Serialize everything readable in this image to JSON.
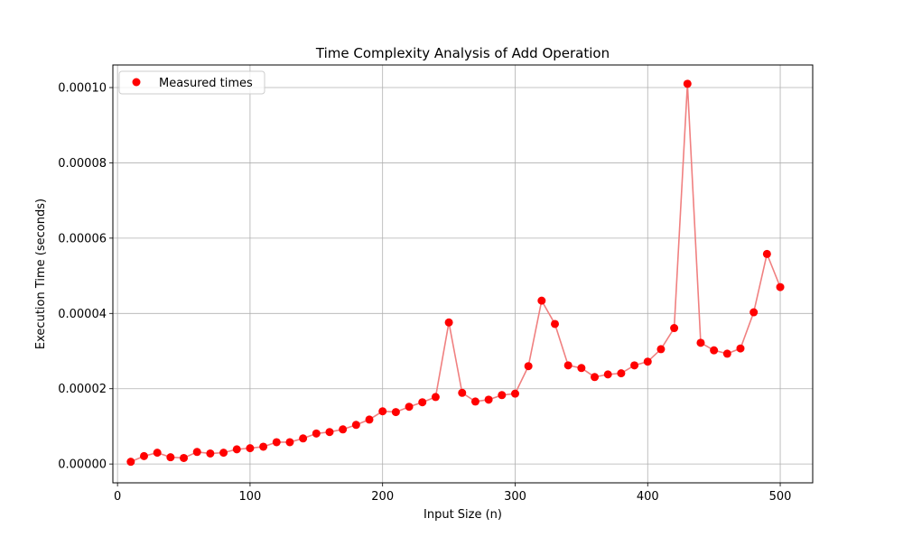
{
  "chart_data": {
    "type": "scatter",
    "title": "Time Complexity Analysis of Add Operation",
    "xlabel": "Input Size (n)",
    "ylabel": "Execution Time (seconds)",
    "xlim": [
      -3.5,
      524.5
    ],
    "ylim": [
      -5e-06,
      0.000106
    ],
    "xticks": [
      0,
      100,
      200,
      300,
      400,
      500
    ],
    "xtick_labels": [
      "0",
      "100",
      "200",
      "300",
      "400",
      "500"
    ],
    "yticks": [
      0,
      2e-05,
      4e-05,
      6e-05,
      8e-05,
      0.0001
    ],
    "ytick_labels": [
      "0.00000",
      "0.00002",
      "0.00004",
      "0.00006",
      "0.00008",
      "0.00010"
    ],
    "grid": true,
    "legend_position": "top-left",
    "series": [
      {
        "name": "Measured times",
        "marker_color": "#ff0000",
        "line_color": "#f08080",
        "x": [
          10,
          20,
          30,
          40,
          50,
          60,
          70,
          80,
          90,
          100,
          110,
          120,
          130,
          140,
          150,
          160,
          170,
          180,
          190,
          200,
          210,
          220,
          230,
          240,
          250,
          260,
          270,
          280,
          290,
          300,
          310,
          320,
          330,
          340,
          350,
          360,
          370,
          380,
          390,
          400,
          410,
          420,
          430,
          440,
          450,
          460,
          470,
          480,
          490,
          500
        ],
        "y": [
          6e-07,
          2.1e-06,
          3e-06,
          1.8e-06,
          1.6e-06,
          3.2e-06,
          2.8e-06,
          3e-06,
          3.9e-06,
          4.2e-06,
          4.6e-06,
          5.8e-06,
          5.8e-06,
          6.8e-06,
          8.1e-06,
          8.5e-06,
          9.2e-06,
          1.04e-05,
          1.18e-05,
          1.4e-05,
          1.38e-05,
          1.52e-05,
          1.64e-05,
          1.78e-05,
          3.76e-05,
          1.89e-05,
          1.66e-05,
          1.71e-05,
          1.83e-05,
          1.87e-05,
          2.6e-05,
          4.34e-05,
          3.72e-05,
          2.62e-05,
          2.55e-05,
          2.31e-05,
          2.38e-05,
          2.41e-05,
          2.62e-05,
          2.72e-05,
          3.05e-05,
          3.61e-05,
          0.000101,
          3.22e-05,
          3.02e-05,
          2.93e-05,
          3.07e-05,
          4.03e-05,
          5.58e-05,
          4.7e-05
        ]
      }
    ]
  }
}
